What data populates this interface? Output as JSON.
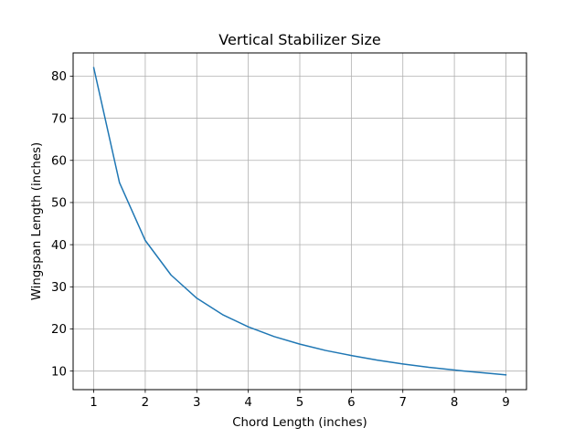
{
  "chart_data": {
    "type": "line",
    "title": "Vertical Stabilizer Size",
    "xlabel": "Chord Length (inches)",
    "ylabel": "Wingspan Length (inches)",
    "xlim": [
      0.6,
      9.4
    ],
    "ylim": [
      5.6,
      85.5
    ],
    "xticks": [
      1,
      2,
      3,
      4,
      5,
      6,
      7,
      8,
      9
    ],
    "yticks": [
      10,
      20,
      30,
      40,
      50,
      60,
      70,
      80
    ],
    "grid": true,
    "series": [
      {
        "color": "#1f77b4",
        "x": [
          1,
          1.5,
          2,
          2.5,
          3,
          3.5,
          4,
          4.5,
          5,
          5.5,
          6,
          6.5,
          7,
          7.5,
          8,
          8.5,
          9
        ],
        "values": [
          82,
          54.7,
          41,
          32.8,
          27.3,
          23.4,
          20.5,
          18.2,
          16.4,
          14.9,
          13.7,
          12.6,
          11.7,
          10.9,
          10.25,
          9.65,
          9.1
        ]
      }
    ]
  }
}
